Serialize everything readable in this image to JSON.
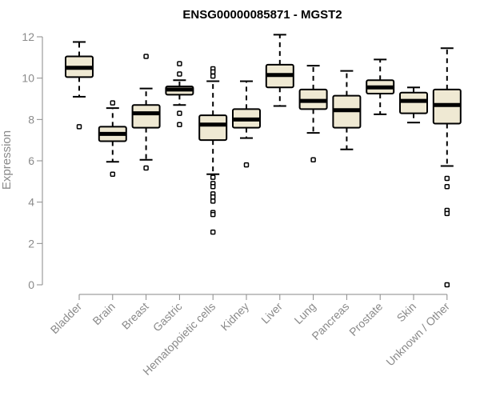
{
  "chart_data": {
    "type": "boxplot",
    "title": "ENSG00000085871 - MGST2",
    "xlabel": "",
    "ylabel": "Expression",
    "ylim": [
      0,
      12
    ],
    "yticks": [
      0,
      2,
      4,
      6,
      8,
      10,
      12
    ],
    "grid": false,
    "colors": {
      "box_fill": "#efe9d3",
      "stroke": "#000000",
      "axis": "#8a8a8a"
    },
    "categories": [
      "Bladder",
      "Brain",
      "Breast",
      "Gastric",
      "Hematopoietic cells",
      "Kidney",
      "Liver",
      "Lung",
      "Pancreas",
      "Prostate",
      "Skin",
      "Unknown / Other"
    ],
    "boxes": [
      {
        "category": "Bladder",
        "whisker_low": 9.1,
        "q1": 10.05,
        "median": 10.5,
        "q3": 11.05,
        "whisker_high": 11.75,
        "outliers": [
          7.65
        ]
      },
      {
        "category": "Brain",
        "whisker_low": 5.95,
        "q1": 6.95,
        "median": 7.3,
        "q3": 7.65,
        "whisker_high": 8.55,
        "outliers": [
          8.8,
          5.35
        ]
      },
      {
        "category": "Breast",
        "whisker_low": 6.05,
        "q1": 7.6,
        "median": 8.3,
        "q3": 8.7,
        "whisker_high": 9.5,
        "outliers": [
          11.05,
          5.65
        ]
      },
      {
        "category": "Gastric",
        "whisker_low": 8.7,
        "q1": 9.2,
        "median": 9.45,
        "q3": 9.6,
        "whisker_high": 9.9,
        "outliers": [
          10.7,
          10.2,
          8.3,
          7.75
        ]
      },
      {
        "category": "Hematopoietic cells",
        "whisker_low": 5.35,
        "q1": 7.0,
        "median": 7.75,
        "q3": 8.2,
        "whisker_high": 9.85,
        "outliers": [
          10.45,
          10.3,
          10.1,
          5.2,
          4.9,
          4.75,
          4.4,
          4.25,
          4.05,
          3.5,
          3.4,
          2.55
        ]
      },
      {
        "category": "Kidney",
        "whisker_low": 7.1,
        "q1": 7.6,
        "median": 8.0,
        "q3": 8.5,
        "whisker_high": 9.85,
        "outliers": [
          5.8
        ]
      },
      {
        "category": "Liver",
        "whisker_low": 8.65,
        "q1": 9.55,
        "median": 10.15,
        "q3": 10.65,
        "whisker_high": 12.1,
        "outliers": []
      },
      {
        "category": "Lung",
        "whisker_low": 7.35,
        "q1": 8.5,
        "median": 8.9,
        "q3": 9.45,
        "whisker_high": 10.6,
        "outliers": [
          6.05
        ]
      },
      {
        "category": "Pancreas",
        "whisker_low": 6.55,
        "q1": 7.6,
        "median": 8.45,
        "q3": 9.15,
        "whisker_high": 10.35,
        "outliers": []
      },
      {
        "category": "Prostate",
        "whisker_low": 8.25,
        "q1": 9.25,
        "median": 9.55,
        "q3": 9.9,
        "whisker_high": 10.9,
        "outliers": []
      },
      {
        "category": "Skin",
        "whisker_low": 7.85,
        "q1": 8.3,
        "median": 8.9,
        "q3": 9.3,
        "whisker_high": 9.55,
        "outliers": []
      },
      {
        "category": "Unknown / Other",
        "whisker_low": 5.75,
        "q1": 7.8,
        "median": 8.7,
        "q3": 9.45,
        "whisker_high": 11.45,
        "outliers": [
          5.15,
          4.75,
          3.6,
          3.45,
          0.0
        ]
      }
    ]
  }
}
